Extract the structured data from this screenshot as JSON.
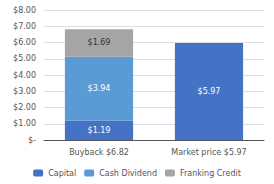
{
  "chart_data": {
    "type": "bar",
    "stacked": true,
    "categories": [
      "Buyback $6.82",
      "Market price $5.97"
    ],
    "series": [
      {
        "name": "Capital",
        "color": "#4472c4",
        "values": [
          1.19,
          5.97
        ],
        "value_labels": [
          "$1.19",
          "$5.97"
        ]
      },
      {
        "name": "Cash Dividend",
        "color": "#5b9bd5",
        "values": [
          3.94,
          0.0
        ],
        "value_labels": [
          "$3.94",
          null
        ]
      },
      {
        "name": "Franking Credit",
        "color": "#a5a5a5",
        "values": [
          1.69,
          0.0
        ],
        "value_labels": [
          "$1.69",
          null
        ]
      }
    ],
    "data_labels": true,
    "ylim": [
      0,
      8.0
    ],
    "yticks": [
      {
        "value": 0,
        "label": "$-"
      },
      {
        "value": 1,
        "label": "$1.00"
      },
      {
        "value": 2,
        "label": "$2.00"
      },
      {
        "value": 3,
        "label": "$3.00"
      },
      {
        "value": 4,
        "label": "$4.00"
      },
      {
        "value": 5,
        "label": "$5.00"
      },
      {
        "value": 6,
        "label": "$6.00"
      },
      {
        "value": 7,
        "label": "$7.00"
      },
      {
        "value": 8,
        "label": "$8.00"
      }
    ],
    "grid": true,
    "legend": "bottom"
  }
}
